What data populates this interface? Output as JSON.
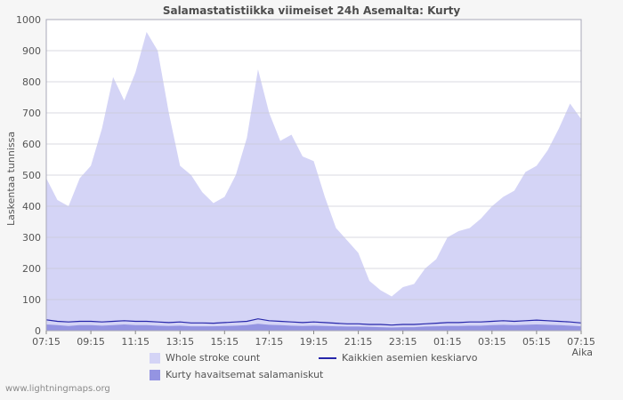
{
  "page": {
    "watermark": "www.lightningmaps.org"
  },
  "chart_data": {
    "type": "area",
    "title": "Salamastatistiikka viimeiset 24h Asemalta: Kurty",
    "xlabel": "Aika",
    "ylabel": "Laskentaa tunnissa",
    "ylim": [
      0,
      1000
    ],
    "ytick_step": 100,
    "grid": true,
    "legend_position": "bottom",
    "x_interval_minutes": 30,
    "x_tick_every": 4,
    "x_ticks": [
      "07:15",
      "09:15",
      "11:15",
      "13:15",
      "15:15",
      "17:15",
      "19:15",
      "21:15",
      "23:15",
      "01:15",
      "03:15",
      "05:15",
      "07:15"
    ],
    "series": [
      {
        "name": "Whole stroke count",
        "type": "area",
        "color": "#d4d4f6",
        "values": [
          490,
          420,
          400,
          490,
          530,
          650,
          815,
          740,
          830,
          960,
          900,
          700,
          530,
          500,
          445,
          410,
          430,
          500,
          620,
          840,
          700,
          610,
          630,
          560,
          545,
          430,
          330,
          290,
          250,
          160,
          130,
          110,
          140,
          150,
          200,
          230,
          300,
          320,
          330,
          360,
          400,
          430,
          450,
          510,
          530,
          580,
          650,
          730,
          680
        ]
      },
      {
        "name": "Kurty havaitsemat salamaniskut",
        "type": "area",
        "color": "#9494e2",
        "values": [
          20,
          18,
          15,
          18,
          18,
          16,
          18,
          20,
          18,
          18,
          16,
          15,
          16,
          14,
          14,
          14,
          15,
          16,
          18,
          22,
          19,
          18,
          16,
          15,
          16,
          15,
          14,
          13,
          13,
          12,
          11,
          10,
          11,
          11,
          13,
          14,
          15,
          15,
          16,
          16,
          18,
          19,
          18,
          19,
          20,
          19,
          18,
          16,
          14
        ]
      },
      {
        "name": "Kaikkien asemien keskiarvo",
        "type": "line",
        "color": "#2626aa",
        "values": [
          35,
          30,
          28,
          30,
          30,
          28,
          30,
          32,
          30,
          30,
          28,
          26,
          28,
          25,
          25,
          24,
          26,
          28,
          30,
          38,
          32,
          30,
          28,
          26,
          28,
          26,
          24,
          22,
          22,
          20,
          20,
          18,
          20,
          20,
          22,
          24,
          26,
          26,
          28,
          28,
          30,
          32,
          30,
          32,
          34,
          32,
          30,
          28,
          25
        ]
      }
    ]
  }
}
